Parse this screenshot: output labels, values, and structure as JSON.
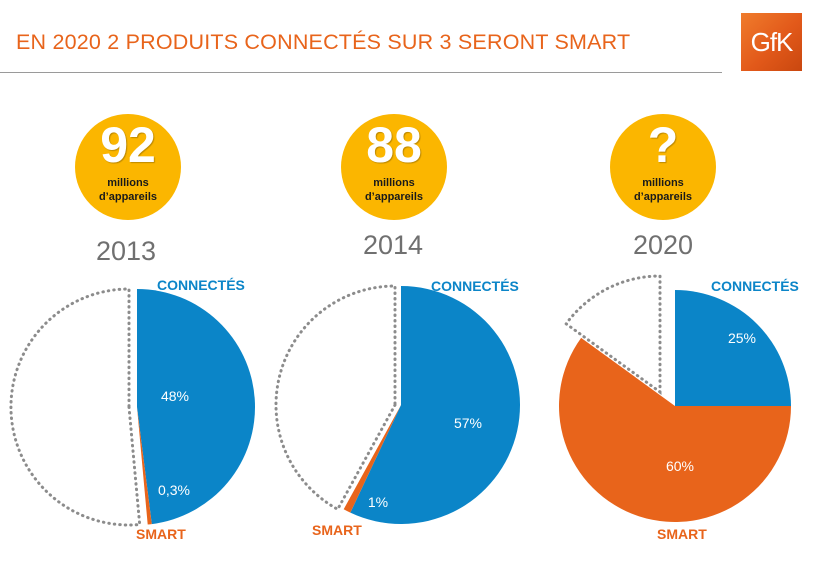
{
  "title": "EN 2020 2 PRODUITS CONNECTÉS SUR 3 SERONT SMART",
  "logo": "GfK",
  "colors": {
    "accent": "#e8641b",
    "connected": "#0b85c8",
    "smart": "#e8641b",
    "badge": "#fbb600",
    "outline": "#8c8c8c"
  },
  "chart_data": [
    {
      "type": "pie",
      "year": "2013",
      "badge_value": "92",
      "badge_unit_line1": "millions",
      "badge_unit_line2": "d’appareils",
      "slices": [
        {
          "label": "CONNECTÉS",
          "value": 48,
          "value_label": "48%"
        },
        {
          "label": "SMART",
          "value": 0.3,
          "value_label": "0,3%"
        }
      ]
    },
    {
      "type": "pie",
      "year": "2014",
      "badge_value": "88",
      "badge_unit_line1": "millions",
      "badge_unit_line2": "d’appareils",
      "slices": [
        {
          "label": "CONNECTÉS",
          "value": 57,
          "value_label": "57%"
        },
        {
          "label": "SMART",
          "value": 1,
          "value_label": "1%"
        }
      ]
    },
    {
      "type": "pie",
      "year": "2020",
      "badge_value": "?",
      "badge_unit_line1": "millions",
      "badge_unit_line2": "d’appareils",
      "slices": [
        {
          "label": "CONNECTÉS",
          "value": 25,
          "value_label": "25%"
        },
        {
          "label": "SMART",
          "value": 60,
          "value_label": "60%"
        }
      ]
    }
  ]
}
